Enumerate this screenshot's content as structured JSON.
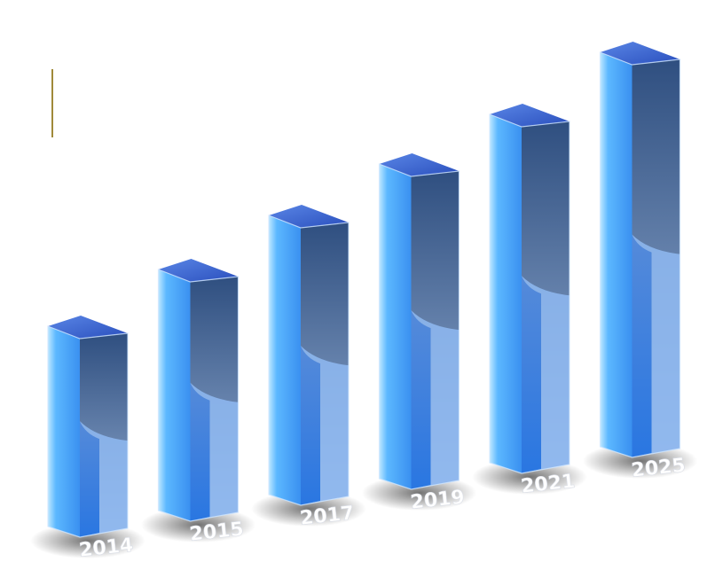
{
  "chart_data": {
    "type": "bar",
    "title": "",
    "xlabel": "",
    "ylabel": "",
    "categories": [
      "2014",
      "2015",
      "2017",
      "2019",
      "2021",
      "2025"
    ],
    "values": [
      238,
      284,
      327,
      367,
      405,
      457
    ],
    "ylim": [
      0,
      480
    ],
    "grid": false,
    "legend": "none"
  },
  "colors": {
    "bar_top": "#3f6ad8",
    "bar_front_light": "#7fd0ff",
    "bar_front_dark": "#1f6fe0",
    "bar_glass": "#2b4a86",
    "label_fill": "#ffffff",
    "accent_line": "#a08a3a"
  }
}
